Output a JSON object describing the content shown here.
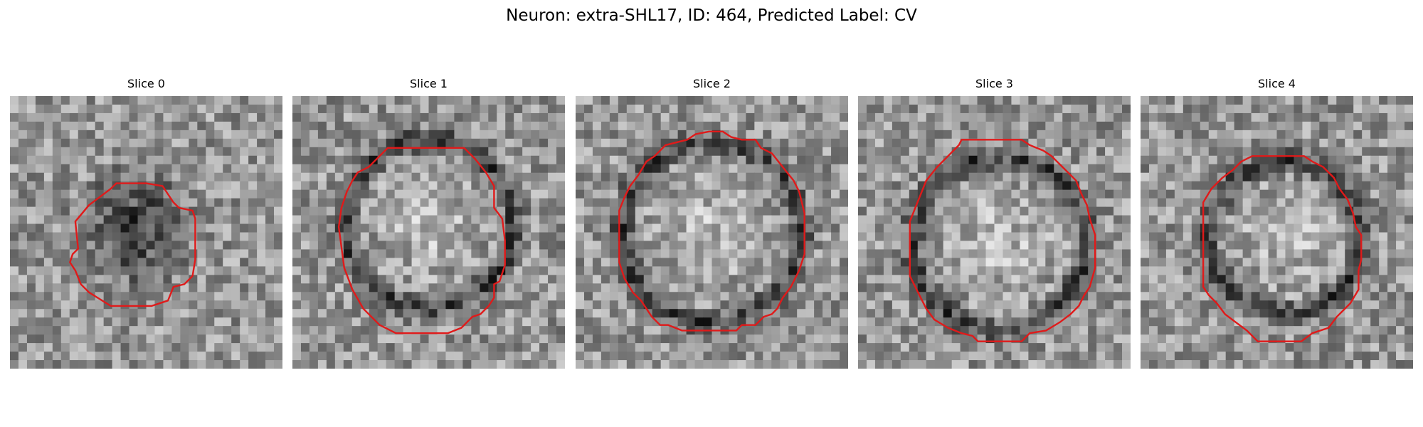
{
  "figure": {
    "title": "Neuron: extra-SHL17, ID: 464, Predicted Label: CV"
  },
  "panels": [
    {
      "title": "Slice 0",
      "seed": 11,
      "dark_ring": [
        0.43,
        0.49,
        0.27
      ],
      "blob": [
        0.5,
        0.45,
        0.22,
        0.35
      ],
      "contour": [
        [
          0.39,
          0.32
        ],
        [
          0.5,
          0.32
        ],
        [
          0.56,
          0.33
        ],
        [
          0.58,
          0.36
        ],
        [
          0.6,
          0.39
        ],
        [
          0.62,
          0.41
        ],
        [
          0.67,
          0.42
        ],
        [
          0.68,
          0.45
        ],
        [
          0.68,
          0.6
        ],
        [
          0.67,
          0.66
        ],
        [
          0.64,
          0.69
        ],
        [
          0.6,
          0.7
        ],
        [
          0.58,
          0.75
        ],
        [
          0.52,
          0.77
        ],
        [
          0.37,
          0.77
        ],
        [
          0.29,
          0.72
        ],
        [
          0.26,
          0.69
        ],
        [
          0.24,
          0.64
        ],
        [
          0.22,
          0.61
        ],
        [
          0.23,
          0.58
        ],
        [
          0.25,
          0.56
        ],
        [
          0.24,
          0.46
        ],
        [
          0.29,
          0.4
        ],
        [
          0.33,
          0.37
        ],
        [
          0.37,
          0.34
        ]
      ]
    },
    {
      "title": "Slice 1",
      "seed": 23,
      "ring": [
        0.5,
        0.47,
        0.31
      ],
      "contour": [
        [
          0.35,
          0.19
        ],
        [
          0.44,
          0.19
        ],
        [
          0.52,
          0.19
        ],
        [
          0.63,
          0.19
        ],
        [
          0.67,
          0.23
        ],
        [
          0.71,
          0.28
        ],
        [
          0.74,
          0.33
        ],
        [
          0.74,
          0.41
        ],
        [
          0.77,
          0.45
        ],
        [
          0.78,
          0.53
        ],
        [
          0.78,
          0.62
        ],
        [
          0.76,
          0.68
        ],
        [
          0.74,
          0.69
        ],
        [
          0.74,
          0.74
        ],
        [
          0.72,
          0.77
        ],
        [
          0.69,
          0.8
        ],
        [
          0.66,
          0.81
        ],
        [
          0.62,
          0.85
        ],
        [
          0.57,
          0.87
        ],
        [
          0.38,
          0.87
        ],
        [
          0.32,
          0.84
        ],
        [
          0.26,
          0.78
        ],
        [
          0.22,
          0.71
        ],
        [
          0.19,
          0.63
        ],
        [
          0.17,
          0.48
        ],
        [
          0.18,
          0.41
        ],
        [
          0.2,
          0.35
        ],
        [
          0.22,
          0.31
        ],
        [
          0.24,
          0.28
        ],
        [
          0.28,
          0.26
        ],
        [
          0.31,
          0.23
        ]
      ]
    },
    {
      "title": "Slice 2",
      "seed": 37,
      "ring": [
        0.5,
        0.5,
        0.33
      ],
      "contour": [
        [
          0.44,
          0.14
        ],
        [
          0.49,
          0.13
        ],
        [
          0.54,
          0.13
        ],
        [
          0.57,
          0.15
        ],
        [
          0.61,
          0.16
        ],
        [
          0.66,
          0.16
        ],
        [
          0.68,
          0.19
        ],
        [
          0.72,
          0.21
        ],
        [
          0.76,
          0.26
        ],
        [
          0.8,
          0.31
        ],
        [
          0.82,
          0.35
        ],
        [
          0.84,
          0.43
        ],
        [
          0.84,
          0.58
        ],
        [
          0.82,
          0.64
        ],
        [
          0.79,
          0.7
        ],
        [
          0.76,
          0.74
        ],
        [
          0.74,
          0.78
        ],
        [
          0.72,
          0.8
        ],
        [
          0.69,
          0.81
        ],
        [
          0.66,
          0.84
        ],
        [
          0.61,
          0.84
        ],
        [
          0.59,
          0.86
        ],
        [
          0.39,
          0.86
        ],
        [
          0.34,
          0.84
        ],
        [
          0.31,
          0.84
        ],
        [
          0.28,
          0.81
        ],
        [
          0.24,
          0.75
        ],
        [
          0.21,
          0.72
        ],
        [
          0.18,
          0.67
        ],
        [
          0.16,
          0.61
        ],
        [
          0.16,
          0.42
        ],
        [
          0.18,
          0.37
        ],
        [
          0.2,
          0.33
        ],
        [
          0.23,
          0.29
        ],
        [
          0.26,
          0.24
        ],
        [
          0.29,
          0.22
        ],
        [
          0.33,
          0.18
        ],
        [
          0.37,
          0.17
        ],
        [
          0.41,
          0.16
        ]
      ]
    },
    {
      "title": "Slice 3",
      "seed": 53,
      "ring": [
        0.52,
        0.54,
        0.32
      ],
      "contour": [
        [
          0.38,
          0.16
        ],
        [
          0.5,
          0.16
        ],
        [
          0.6,
          0.16
        ],
        [
          0.63,
          0.18
        ],
        [
          0.68,
          0.2
        ],
        [
          0.71,
          0.22
        ],
        [
          0.75,
          0.26
        ],
        [
          0.8,
          0.31
        ],
        [
          0.82,
          0.36
        ],
        [
          0.84,
          0.4
        ],
        [
          0.85,
          0.45
        ],
        [
          0.87,
          0.51
        ],
        [
          0.87,
          0.63
        ],
        [
          0.85,
          0.7
        ],
        [
          0.83,
          0.73
        ],
        [
          0.81,
          0.77
        ],
        [
          0.78,
          0.8
        ],
        [
          0.74,
          0.83
        ],
        [
          0.69,
          0.86
        ],
        [
          0.63,
          0.87
        ],
        [
          0.6,
          0.9
        ],
        [
          0.44,
          0.9
        ],
        [
          0.42,
          0.88
        ],
        [
          0.38,
          0.87
        ],
        [
          0.33,
          0.85
        ],
        [
          0.28,
          0.82
        ],
        [
          0.25,
          0.78
        ],
        [
          0.23,
          0.74
        ],
        [
          0.21,
          0.7
        ],
        [
          0.19,
          0.66
        ],
        [
          0.19,
          0.46
        ],
        [
          0.21,
          0.41
        ],
        [
          0.23,
          0.36
        ],
        [
          0.25,
          0.31
        ],
        [
          0.29,
          0.26
        ],
        [
          0.33,
          0.22
        ],
        [
          0.37,
          0.18
        ]
      ]
    },
    {
      "title": "Slice 4",
      "seed": 71,
      "ring": [
        0.53,
        0.52,
        0.28
      ],
      "contour": [
        [
          0.41,
          0.22
        ],
        [
          0.5,
          0.22
        ],
        [
          0.6,
          0.22
        ],
        [
          0.63,
          0.24
        ],
        [
          0.67,
          0.26
        ],
        [
          0.71,
          0.3
        ],
        [
          0.73,
          0.34
        ],
        [
          0.76,
          0.38
        ],
        [
          0.78,
          0.43
        ],
        [
          0.79,
          0.48
        ],
        [
          0.81,
          0.51
        ],
        [
          0.81,
          0.6
        ],
        [
          0.8,
          0.64
        ],
        [
          0.8,
          0.71
        ],
        [
          0.77,
          0.76
        ],
        [
          0.74,
          0.79
        ],
        [
          0.72,
          0.81
        ],
        [
          0.69,
          0.85
        ],
        [
          0.63,
          0.87
        ],
        [
          0.59,
          0.9
        ],
        [
          0.43,
          0.9
        ],
        [
          0.39,
          0.86
        ],
        [
          0.35,
          0.83
        ],
        [
          0.31,
          0.8
        ],
        [
          0.28,
          0.76
        ],
        [
          0.25,
          0.73
        ],
        [
          0.23,
          0.7
        ],
        [
          0.23,
          0.39
        ],
        [
          0.26,
          0.34
        ],
        [
          0.3,
          0.3
        ],
        [
          0.34,
          0.27
        ],
        [
          0.37,
          0.24
        ]
      ]
    }
  ],
  "colors": {
    "contour": "#e01a1a",
    "background": "#ffffff"
  }
}
